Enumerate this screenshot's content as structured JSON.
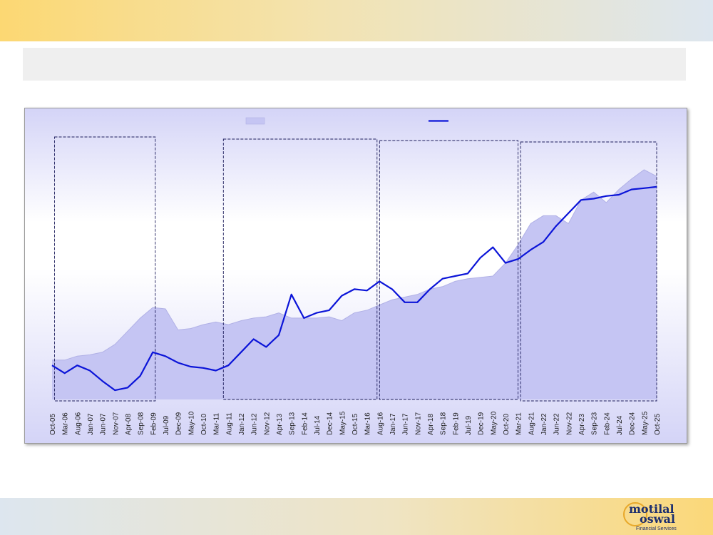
{
  "chart_data": {
    "type": "area",
    "title": "",
    "xlabel": "",
    "ylabel": "",
    "categories": [
      "Oct-05",
      "Mar-06",
      "Aug-06",
      "Jan-07",
      "Jun-07",
      "Nov-07",
      "Apr-08",
      "Sep-08",
      "Feb-09",
      "Jul-09",
      "Dec-09",
      "May-10",
      "Oct-10",
      "Mar-11",
      "Aug-11",
      "Jan-12",
      "Jun-12",
      "Nov-12",
      "Apr-13",
      "Sep-13",
      "Feb-14",
      "Jul-14",
      "Dec-14",
      "May-15",
      "Oct-15",
      "Mar-16",
      "Aug-16",
      "Jan-17",
      "Jun-17",
      "Nov-17",
      "Apr-18",
      "Sep-18",
      "Feb-19",
      "Jul-19",
      "Dec-19",
      "May-20",
      "Oct-20",
      "Mar-21",
      "Aug-21",
      "Jan-22",
      "Jun-22",
      "Nov-22",
      "Apr-23",
      "Sep-23",
      "Feb-24",
      "Jul-24",
      "Dec-24",
      "May-25",
      "Oct-25"
    ],
    "ylim": [
      0,
      100
    ],
    "grid": false,
    "legend": "top-center",
    "series": [
      {
        "kind": "area",
        "color": "#c5c5f3",
        "edge_color": "#b1b1e6",
        "values": [
          15,
          15,
          16.5,
          17,
          18,
          21,
          26,
          31,
          35,
          34.5,
          26.5,
          27,
          28.5,
          29.5,
          28.5,
          30,
          31,
          31.5,
          33,
          31,
          31,
          31,
          31.5,
          30,
          33,
          34,
          36,
          38,
          39,
          40,
          42,
          43,
          45,
          46,
          46.5,
          47,
          52,
          59,
          67,
          70,
          70,
          67,
          76,
          79,
          75,
          80,
          84,
          87.5,
          85
        ]
      },
      {
        "kind": "line",
        "color": "#0b14d8",
        "values": [
          13,
          10,
          13,
          11,
          7,
          3.5,
          4.5,
          9,
          18,
          16.5,
          14,
          12.5,
          12,
          11,
          13,
          18,
          23,
          20,
          24.5,
          40,
          31,
          33,
          34,
          39.5,
          42,
          41.5,
          45,
          42,
          37,
          37,
          42,
          46,
          47,
          48,
          54,
          58,
          52,
          53.5,
          57,
          60,
          66,
          71,
          76,
          76.5,
          77.5,
          78,
          80,
          80.5,
          81
        ]
      }
    ],
    "shaded_periods": [
      {
        "from": "Nov-05",
        "to": "Mar-09"
      },
      {
        "from": "Jun-11",
        "to": "Jul-16"
      },
      {
        "from": "Aug-16",
        "to": "Mar-21"
      },
      {
        "from": "Apr-21",
        "to": "Oct-25"
      }
    ]
  }
}
